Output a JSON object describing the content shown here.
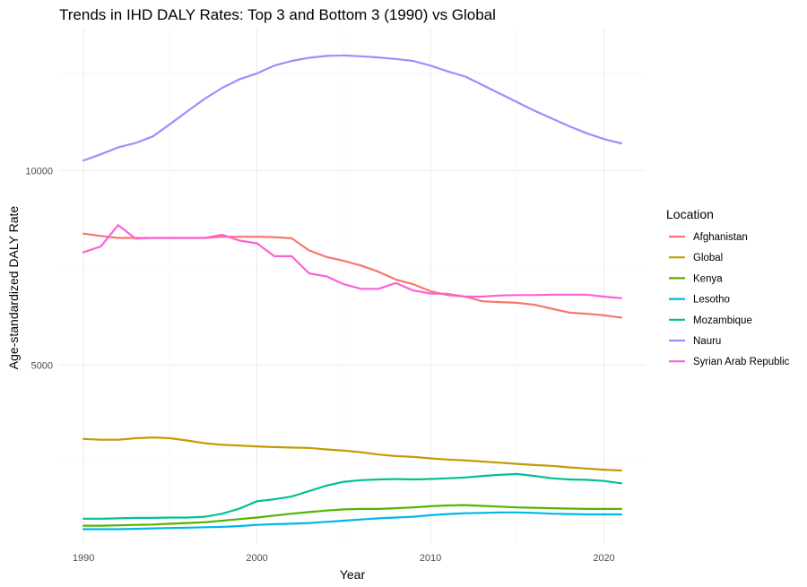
{
  "chart_data": {
    "type": "line",
    "title": "Trends in IHD DALY Rates: Top 3 and Bottom 3 (1990) vs Global",
    "xlabel": "Year",
    "ylabel": "Age-standardized DALY Rate",
    "xlim": [
      1988.6,
      2022.4
    ],
    "ylim": [
      400,
      13650
    ],
    "x_ticks": [
      1990,
      2000,
      2010,
      2020
    ],
    "x_minor_ticks": [
      1995,
      2005,
      2015
    ],
    "y_ticks": [
      5000,
      10000
    ],
    "y_minor_ticks": [
      2500,
      7500,
      12500
    ],
    "grid": true,
    "legend_title": "Location",
    "legend_position": "right",
    "x": [
      1990,
      1991,
      1992,
      1993,
      1994,
      1995,
      1996,
      1997,
      1998,
      1999,
      2000,
      2001,
      2002,
      2003,
      2004,
      2005,
      2006,
      2007,
      2008,
      2009,
      2010,
      2011,
      2012,
      2013,
      2014,
      2015,
      2016,
      2017,
      2018,
      2019,
      2020,
      2021
    ],
    "series": [
      {
        "name": "Afghanistan",
        "color": "#F8766D",
        "values": [
          8380,
          8320,
          8270,
          8270,
          8270,
          8270,
          8270,
          8270,
          8300,
          8300,
          8300,
          8290,
          8260,
          7950,
          7780,
          7680,
          7560,
          7400,
          7200,
          7080,
          6900,
          6800,
          6760,
          6640,
          6620,
          6600,
          6550,
          6450,
          6350,
          6320,
          6280,
          6220
        ]
      },
      {
        "name": "Global",
        "color": "#C49A00",
        "values": [
          3100,
          3080,
          3080,
          3120,
          3140,
          3120,
          3060,
          2990,
          2950,
          2930,
          2910,
          2890,
          2880,
          2870,
          2830,
          2800,
          2760,
          2700,
          2660,
          2640,
          2600,
          2570,
          2550,
          2520,
          2490,
          2460,
          2430,
          2410,
          2370,
          2340,
          2310,
          2290
        ]
      },
      {
        "name": "Kenya",
        "color": "#53B400",
        "values": [
          870,
          870,
          880,
          890,
          900,
          920,
          940,
          960,
          1000,
          1040,
          1080,
          1130,
          1180,
          1220,
          1260,
          1290,
          1300,
          1300,
          1320,
          1340,
          1370,
          1390,
          1400,
          1380,
          1360,
          1340,
          1330,
          1320,
          1310,
          1300,
          1300,
          1300
        ]
      },
      {
        "name": "Lesotho",
        "color": "#00B6EB",
        "values": [
          780,
          780,
          780,
          790,
          800,
          810,
          820,
          830,
          840,
          860,
          890,
          910,
          920,
          940,
          970,
          1000,
          1030,
          1060,
          1080,
          1100,
          1140,
          1170,
          1190,
          1200,
          1210,
          1210,
          1200,
          1180,
          1170,
          1160,
          1160,
          1160
        ]
      },
      {
        "name": "Mozambique",
        "color": "#00C094",
        "values": [
          1050,
          1050,
          1060,
          1070,
          1070,
          1080,
          1080,
          1100,
          1180,
          1310,
          1500,
          1550,
          1620,
          1760,
          1900,
          2000,
          2040,
          2060,
          2070,
          2060,
          2070,
          2090,
          2110,
          2150,
          2180,
          2200,
          2150,
          2090,
          2060,
          2050,
          2020,
          1960
        ]
      },
      {
        "name": "Nauru",
        "color": "#A58AFF",
        "values": [
          10260,
          10420,
          10600,
          10710,
          10880,
          11200,
          11530,
          11850,
          12130,
          12350,
          12500,
          12700,
          12820,
          12900,
          12950,
          12960,
          12940,
          12910,
          12870,
          12820,
          12700,
          12550,
          12420,
          12200,
          11980,
          11760,
          11540,
          11340,
          11140,
          10960,
          10810,
          10700
        ]
      },
      {
        "name": "Syrian Arab Republic",
        "color": "#FB61D7",
        "values": [
          7900,
          8050,
          8600,
          8250,
          8270,
          8270,
          8270,
          8270,
          8350,
          8200,
          8130,
          7800,
          7800,
          7360,
          7280,
          7080,
          6960,
          6960,
          7110,
          6920,
          6840,
          6830,
          6760,
          6760,
          6790,
          6800,
          6800,
          6810,
          6810,
          6810,
          6760,
          6720
        ]
      }
    ]
  }
}
